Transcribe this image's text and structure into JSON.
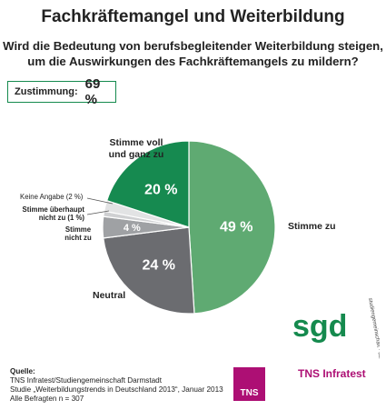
{
  "header": {
    "title": "Fachkräftemangel und Weiterbildung",
    "question_line1": "Wird die Bedeutung von berufsbegleitender Weiterbildung steigen,",
    "question_line2": "um die Auswirkungen des Fachkräftemangels zu mildern?"
  },
  "summary": {
    "label": "Zustimmung:",
    "value": "69 %"
  },
  "chart_data": {
    "type": "pie",
    "slices": [
      {
        "label": "Stimme zu",
        "value": 49,
        "value_label": "49 %",
        "color": "#5faa72"
      },
      {
        "label": "Neutral",
        "value": 24,
        "value_label": "24 %",
        "color": "#6b6c70"
      },
      {
        "label": "Stimme nicht zu",
        "value": 4,
        "value_label": "4 %",
        "color": "#9fa1a4"
      },
      {
        "label": "Stimme überhaupt nicht zu (1 %)",
        "value": 1,
        "value_label": "",
        "color": "#cfd0d2"
      },
      {
        "label": "Keine Angabe (2 %)",
        "value": 2,
        "value_label": "",
        "color": "#e2e3e4"
      },
      {
        "label": "Stimme voll und ganz zu",
        "value": 20,
        "value_label": "20 %",
        "color": "#168a50"
      }
    ]
  },
  "labels": {
    "stimme_voll_1": "Stimme voll",
    "stimme_voll_2": "und ganz zu",
    "keine_angabe": "Keine Angabe (2 %)",
    "ueberhaupt_1": "Stimme überhaupt",
    "ueberhaupt_2": "nicht zu (1 %)",
    "nicht_zu_1": "Stimme",
    "nicht_zu_2": "nicht zu",
    "stimme_zu": "Stimme zu",
    "neutral": "Neutral"
  },
  "footer": {
    "source_label": "Quelle:",
    "source_text": "TNS Infratest/Studiengemeinschaft Darmstadt",
    "study": "Studie „Weiterbildungstrends in Deutschland 2013“, Januar 2013",
    "base": "Alle Befragten n = 307"
  },
  "logos": {
    "sgd": "sgd",
    "sgd_ring": "studiengemeinschaft · darmstadt",
    "tns_box": "TNS",
    "tns_text": "TNS Infratest"
  }
}
